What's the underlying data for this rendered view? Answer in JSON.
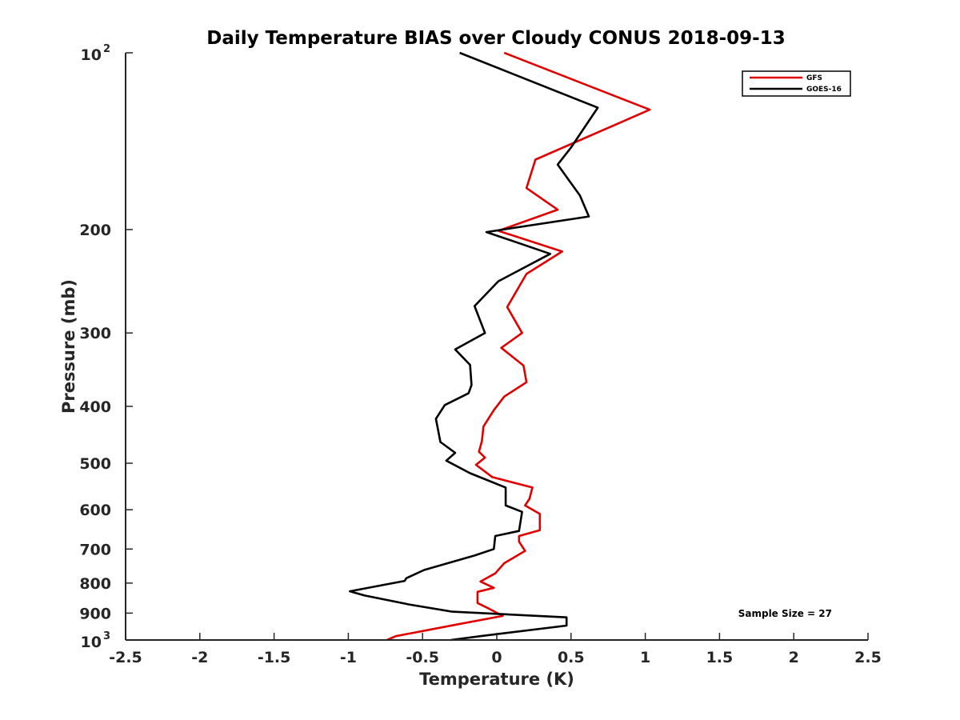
{
  "chart_data": {
    "type": "line",
    "title": "Daily Temperature BIAS over Cloudy CONUS 2018-09-13",
    "xlabel": "Temperature (K)",
    "ylabel": "Pressure (mb)",
    "xlim": [
      -2.5,
      2.5
    ],
    "ylim": [
      100,
      1000
    ],
    "yscale": "log",
    "yreversed": true,
    "xticks": [
      "-2.5",
      "-2",
      "-1.5",
      "-1",
      "-0.5",
      "0",
      "0.5",
      "1",
      "1.5",
      "2",
      "2.5"
    ],
    "yticks": [
      {
        "value": 100,
        "base": "10",
        "exp": "2"
      },
      {
        "value": 200,
        "label": "200"
      },
      {
        "value": 300,
        "label": "300"
      },
      {
        "value": 400,
        "label": "400"
      },
      {
        "value": 500,
        "label": "500"
      },
      {
        "value": 600,
        "label": "600"
      },
      {
        "value": 700,
        "label": "700"
      },
      {
        "value": 800,
        "label": "800"
      },
      {
        "value": 900,
        "label": "900"
      },
      {
        "value": 1000,
        "base": "10",
        "exp": "3"
      }
    ],
    "legend": {
      "position": "top-right"
    },
    "grid": false,
    "series": [
      {
        "name": "GFS",
        "color": "#e00000",
        "points": [
          [
            0.05,
            100
          ],
          [
            1.03,
            125
          ],
          [
            0.26,
            152
          ],
          [
            0.2,
            170
          ],
          [
            0.41,
            185
          ],
          [
            0.01,
            201
          ],
          [
            0.44,
            218
          ],
          [
            0.2,
            238
          ],
          [
            0.07,
            271
          ],
          [
            0.17,
            300
          ],
          [
            0.03,
            318
          ],
          [
            0.18,
            341
          ],
          [
            0.2,
            364
          ],
          [
            0.05,
            385
          ],
          [
            -0.02,
            406
          ],
          [
            -0.09,
            433
          ],
          [
            -0.1,
            458
          ],
          [
            -0.12,
            478
          ],
          [
            -0.08,
            489
          ],
          [
            -0.14,
            503
          ],
          [
            -0.03,
            528
          ],
          [
            0.24,
            550
          ],
          [
            0.22,
            575
          ],
          [
            0.19,
            590
          ],
          [
            0.29,
            610
          ],
          [
            0.29,
            650
          ],
          [
            0.15,
            665
          ],
          [
            0.15,
            680
          ],
          [
            0.19,
            705
          ],
          [
            0.05,
            740
          ],
          [
            -0.01,
            770
          ],
          [
            -0.11,
            795
          ],
          [
            -0.02,
            815
          ],
          [
            -0.13,
            828
          ],
          [
            -0.13,
            865
          ],
          [
            -0.05,
            885
          ],
          [
            0.04,
            910
          ],
          [
            -0.26,
            940
          ],
          [
            -0.68,
            985
          ],
          [
            -0.74,
            1000
          ]
        ]
      },
      {
        "name": "GOES-16",
        "color": "#000000",
        "points": [
          [
            -0.25,
            100
          ],
          [
            0.68,
            124
          ],
          [
            0.5,
            145
          ],
          [
            0.41,
            155
          ],
          [
            0.56,
            175
          ],
          [
            0.62,
            190
          ],
          [
            -0.07,
            202
          ],
          [
            0.36,
            220
          ],
          [
            0.01,
            245
          ],
          [
            -0.15,
            270
          ],
          [
            -0.08,
            300
          ],
          [
            -0.28,
            320
          ],
          [
            -0.18,
            340
          ],
          [
            -0.17,
            368
          ],
          [
            -0.19,
            380
          ],
          [
            -0.35,
            398
          ],
          [
            -0.41,
            420
          ],
          [
            -0.38,
            460
          ],
          [
            -0.28,
            480
          ],
          [
            -0.34,
            495
          ],
          [
            -0.18,
            520
          ],
          [
            0.06,
            550
          ],
          [
            0.06,
            590
          ],
          [
            0.17,
            605
          ],
          [
            0.15,
            652
          ],
          [
            -0.01,
            665
          ],
          [
            -0.02,
            700
          ],
          [
            -0.15,
            718
          ],
          [
            -0.49,
            760
          ],
          [
            -0.61,
            785
          ],
          [
            -0.62,
            793
          ],
          [
            -0.99,
            826
          ],
          [
            -0.89,
            840
          ],
          [
            -0.59,
            870
          ],
          [
            -0.3,
            895
          ],
          [
            0.47,
            915
          ],
          [
            0.47,
            945
          ],
          [
            -0.11,
            985
          ],
          [
            -0.31,
            1000
          ]
        ]
      }
    ],
    "annotations": [
      "Sample Size = 27"
    ]
  }
}
